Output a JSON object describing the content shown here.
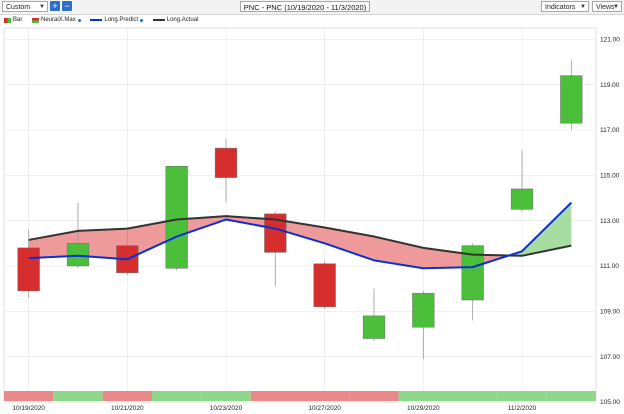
{
  "toolbar": {
    "range_select": "Custom",
    "add_button": "+",
    "remove_button": "−",
    "chart_title": "PNC - PNC (10/19/2020 - 11/3/2020)",
    "indicators_label": "Indicators",
    "views_label": "Views"
  },
  "legend": [
    {
      "label": "Bar",
      "icon": "bar-swatch"
    },
    {
      "label": "NeuralX.Max",
      "icon": "neuralx-swatch"
    },
    {
      "label": "Long.Predict",
      "color": "#0a2fd6"
    },
    {
      "label": "Long.Actual",
      "color": "#333333"
    }
  ],
  "colors": {
    "up": "#4cbf3a",
    "down": "#d62e2e",
    "predict": "#0a2fd6",
    "actual": "#333333",
    "fill_red": "#ee9a9a",
    "fill_green": "#a7dda0",
    "strip_red": "#e98a8a",
    "strip_green": "#8fd78a"
  },
  "chart_data": {
    "type": "candlestick",
    "title": "PNC - PNC (10/19/2020 - 11/3/2020)",
    "ylim": [
      105,
      121.5
    ],
    "yticks": [
      "105.00",
      "107.00",
      "109.00",
      "111.00",
      "113.00",
      "115.00",
      "117.00",
      "119.00",
      "121.00"
    ],
    "x_labels": [
      {
        "index": 0,
        "label": "10/19/2020"
      },
      {
        "index": 2,
        "label": "10/21/2020"
      },
      {
        "index": 4,
        "label": "10/23/2020"
      },
      {
        "index": 6,
        "label": "10/27/2020"
      },
      {
        "index": 8,
        "label": "10/29/2020"
      },
      {
        "index": 10,
        "label": "11/2/2020"
      }
    ],
    "candles": [
      {
        "open": 111.8,
        "close": 109.9,
        "high": 112.6,
        "low": 109.6
      },
      {
        "open": 111.0,
        "close": 112.0,
        "high": 113.8,
        "low": 110.9
      },
      {
        "open": 111.9,
        "close": 110.7,
        "high": 112.7,
        "low": 110.6
      },
      {
        "open": 110.9,
        "close": 115.4,
        "high": 115.4,
        "low": 110.8
      },
      {
        "open": 116.2,
        "close": 114.9,
        "high": 116.6,
        "low": 113.8
      },
      {
        "open": 113.3,
        "close": 111.6,
        "high": 113.4,
        "low": 110.1
      },
      {
        "open": 111.1,
        "close": 109.2,
        "high": 111.2,
        "low": 109.1
      },
      {
        "open": 107.8,
        "close": 108.8,
        "high": 110.0,
        "low": 107.7
      },
      {
        "open": 108.3,
        "close": 109.8,
        "high": 109.9,
        "low": 106.9
      },
      {
        "open": 109.5,
        "close": 111.9,
        "high": 112.0,
        "low": 108.6
      },
      {
        "open": 113.5,
        "close": 114.4,
        "high": 116.1,
        "low": 113.4
      },
      {
        "open": 117.3,
        "close": 119.4,
        "high": 120.1,
        "low": 117.0
      }
    ],
    "series": [
      {
        "name": "Long.Predict",
        "values": [
          111.35,
          111.45,
          111.3,
          112.3,
          113.05,
          112.65,
          112.0,
          111.25,
          110.9,
          110.95,
          111.65,
          113.8
        ]
      },
      {
        "name": "Long.Actual",
        "values": [
          112.15,
          112.55,
          112.65,
          113.05,
          113.2,
          113.05,
          112.7,
          112.3,
          111.8,
          111.5,
          111.45,
          111.9
        ]
      }
    ],
    "strip": [
      "red",
      "green",
      "red",
      "green",
      "green",
      "red",
      "red",
      "red",
      "green",
      "green",
      "green",
      "green"
    ]
  }
}
